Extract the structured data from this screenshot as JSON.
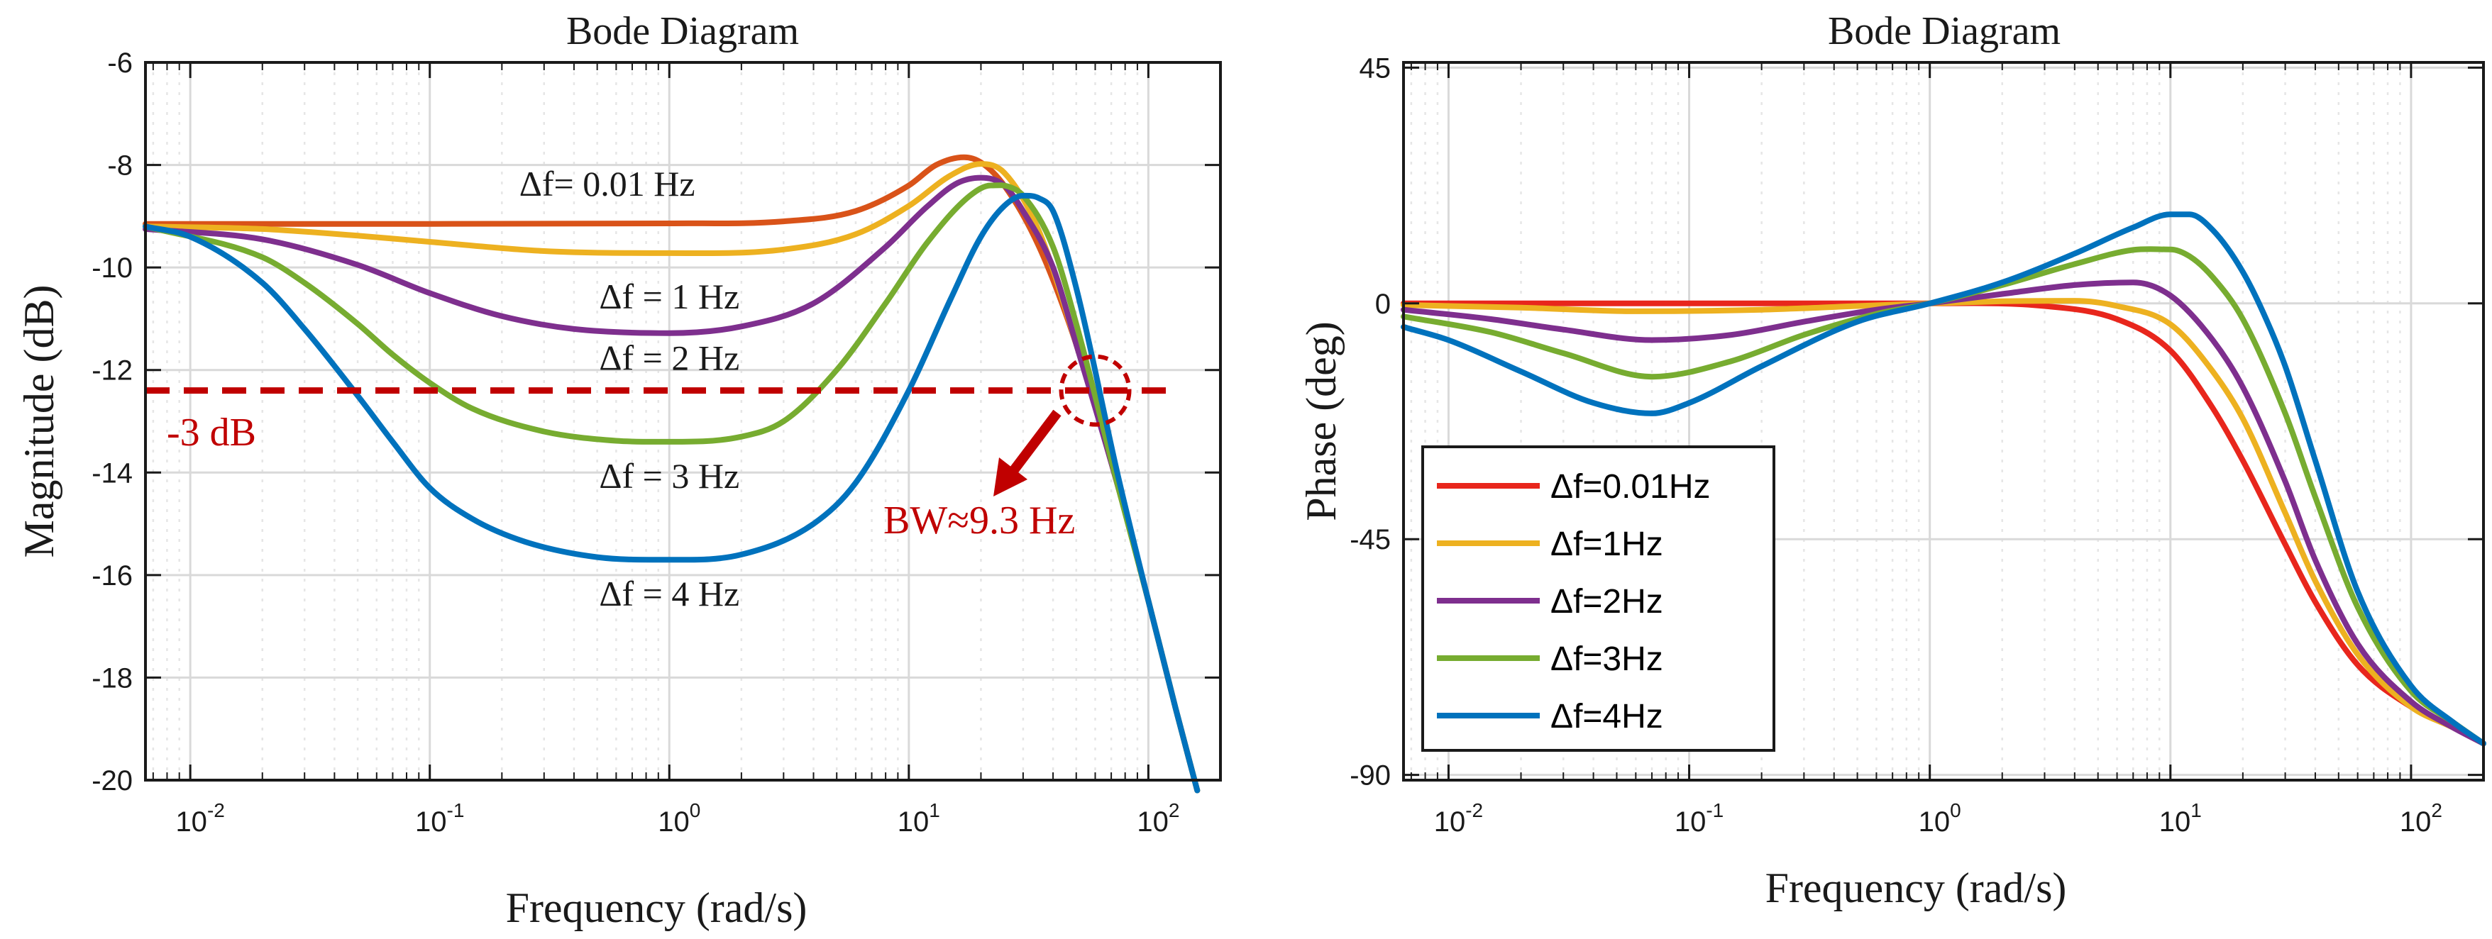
{
  "colors": {
    "series": [
      "#e8261c",
      "#edb120",
      "#7e2f8e",
      "#77ac30",
      "#0072bd"
    ],
    "series_left_top": "#d95319",
    "annotation": "#c00000",
    "grid_major": "#d9d9d9",
    "grid_minor": "#e6e6e6"
  },
  "chart_data": [
    {
      "type": "line",
      "title": "Bode Diagram",
      "xlabel": "Frequency (rad/s)",
      "ylabel": "Magnitude (dB)",
      "xscale": "log",
      "xlim": [
        0.0065,
        200
      ],
      "ylim": [
        -20,
        -6
      ],
      "x_ticks": [
        {
          "base": "10",
          "exp": "-2"
        },
        {
          "base": "10",
          "exp": "-1"
        },
        {
          "base": "10",
          "exp": "0"
        },
        {
          "base": "10",
          "exp": "1"
        },
        {
          "base": "10",
          "exp": "2"
        }
      ],
      "y_ticks": [
        "-6",
        "-8",
        "-10",
        "-12",
        "-14",
        "-16",
        "-18",
        "-20"
      ],
      "y_tick_values": [
        -6,
        -8,
        -10,
        -12,
        -14,
        -16,
        -18,
        -20
      ],
      "series": [
        {
          "name": "Δf = 0.01 Hz",
          "label_text": "Δf= 0.01 Hz",
          "label_at": [
            0.55,
            -8.6
          ],
          "x": [
            0.0065,
            0.1,
            1,
            3,
            6,
            10,
            13,
            17,
            20,
            25,
            35,
            50,
            75,
            100,
            130,
            160
          ],
          "y": [
            -9.15,
            -9.15,
            -9.14,
            -9.1,
            -8.9,
            -8.4,
            -8.0,
            -7.85,
            -7.95,
            -8.4,
            -9.6,
            -11.5,
            -14.3,
            -16.5,
            -18.6,
            -20.2
          ]
        },
        {
          "name": "Δf = 1 Hz",
          "label_text": "Δf = 1 Hz",
          "label_at": [
            1,
            -10.8
          ],
          "x": [
            0.0065,
            0.02,
            0.05,
            0.1,
            0.3,
            1,
            3,
            6,
            10,
            15,
            20,
            25,
            35,
            50,
            75,
            100,
            130,
            160
          ],
          "y": [
            -9.2,
            -9.25,
            -9.38,
            -9.5,
            -9.68,
            -9.72,
            -9.65,
            -9.35,
            -8.8,
            -8.2,
            -7.98,
            -8.15,
            -9.3,
            -11.5,
            -14.3,
            -16.5,
            -18.6,
            -20.2
          ]
        },
        {
          "name": "Δf = 2 Hz",
          "label_text": "Δf = 2 Hz",
          "label_at": [
            1,
            -12.0
          ],
          "x": [
            0.0065,
            0.02,
            0.05,
            0.1,
            0.2,
            0.4,
            1,
            2,
            4,
            8,
            12,
            16,
            20,
            25,
            30,
            40,
            50,
            75,
            100,
            130,
            160
          ],
          "y": [
            -9.25,
            -9.45,
            -9.95,
            -10.5,
            -10.95,
            -11.2,
            -11.28,
            -11.15,
            -10.7,
            -9.6,
            -8.8,
            -8.35,
            -8.25,
            -8.4,
            -8.9,
            -10.0,
            -11.5,
            -14.3,
            -16.5,
            -18.6,
            -20.2
          ]
        },
        {
          "name": "Δf = 3 Hz",
          "label_text": "Δf = 3 Hz",
          "label_at": [
            1,
            -14.3
          ],
          "x": [
            0.0065,
            0.02,
            0.03,
            0.05,
            0.07,
            0.1,
            0.15,
            0.3,
            0.6,
            1,
            2,
            3,
            5,
            8,
            12,
            18,
            22,
            26,
            30,
            40,
            50,
            75,
            100,
            130,
            160
          ],
          "y": [
            -9.2,
            -9.8,
            -10.3,
            -11.1,
            -11.7,
            -12.25,
            -12.75,
            -13.2,
            -13.38,
            -13.4,
            -13.3,
            -13.0,
            -12.0,
            -10.7,
            -9.5,
            -8.6,
            -8.4,
            -8.42,
            -8.6,
            -9.6,
            -11.1,
            -14.3,
            -16.5,
            -18.6,
            -20.2
          ]
        },
        {
          "name": "Δf = 4 Hz",
          "label_text": "Δf = 4 Hz",
          "label_at": [
            1,
            -16.6
          ],
          "x": [
            0.0065,
            0.01,
            0.02,
            0.03,
            0.05,
            0.07,
            0.1,
            0.15,
            0.25,
            0.5,
            1,
            2,
            4,
            6,
            10,
            15,
            20,
            25,
            30,
            35,
            40,
            50,
            75,
            100,
            130,
            160
          ],
          "y": [
            -9.2,
            -9.4,
            -10.3,
            -11.2,
            -12.5,
            -13.4,
            -14.3,
            -14.9,
            -15.35,
            -15.65,
            -15.7,
            -15.6,
            -15.0,
            -14.2,
            -12.4,
            -10.6,
            -9.4,
            -8.8,
            -8.6,
            -8.65,
            -8.9,
            -10.4,
            -14.1,
            -16.5,
            -18.6,
            -20.2
          ]
        }
      ],
      "threshold": {
        "value": -12.4,
        "label": "-3 dB"
      },
      "marker": {
        "x": 60,
        "y": -12.4
      },
      "bw_label": "BW≈9.3 Hz"
    },
    {
      "type": "line",
      "title": "Bode Diagram",
      "xlabel": "Frequency (rad/s)",
      "ylabel": "Phase (deg)",
      "xscale": "log",
      "xlim": [
        0.0065,
        200
      ],
      "ylim": [
        -91,
        46
      ],
      "x_ticks": [
        {
          "base": "10",
          "exp": "-2"
        },
        {
          "base": "10",
          "exp": "-1"
        },
        {
          "base": "10",
          "exp": "0"
        },
        {
          "base": "10",
          "exp": "1"
        },
        {
          "base": "10",
          "exp": "2"
        }
      ],
      "y_ticks": [
        "45",
        "0",
        "-45",
        "-90"
      ],
      "y_tick_values": [
        45,
        0,
        -45,
        -90
      ],
      "legend_position": "lower-left",
      "series": [
        {
          "name": "Δf=0.01Hz",
          "x": [
            0.0065,
            0.1,
            1,
            3,
            6,
            10,
            15,
            20,
            30,
            40,
            60,
            100,
            150,
            200
          ],
          "y": [
            0,
            0,
            0,
            -0.5,
            -3,
            -9,
            -20,
            -30,
            -46,
            -57,
            -69,
            -77,
            -81,
            -84
          ]
        },
        {
          "name": "Δf=1Hz",
          "x": [
            0.0065,
            0.02,
            0.06,
            0.2,
            0.5,
            1,
            2,
            4,
            6,
            10,
            15,
            20,
            30,
            40,
            60,
            100,
            150,
            200
          ],
          "y": [
            -0.3,
            -0.8,
            -1.5,
            -1.2,
            -0.5,
            0,
            0.4,
            0.5,
            -0.5,
            -4,
            -13,
            -22,
            -40,
            -53,
            -67,
            -77,
            -81,
            -84
          ]
        },
        {
          "name": "Δf=2Hz",
          "x": [
            0.0065,
            0.015,
            0.03,
            0.07,
            0.15,
            0.3,
            0.6,
            1,
            2,
            4,
            7,
            10,
            15,
            20,
            30,
            40,
            60,
            100,
            150,
            200
          ],
          "y": [
            -1.2,
            -3,
            -5,
            -7,
            -6,
            -3.5,
            -1.2,
            0,
            1.8,
            3.5,
            4,
            1.5,
            -7,
            -16,
            -34,
            -49,
            -65,
            -76,
            -81,
            -84
          ]
        },
        {
          "name": "Δf=3Hz",
          "x": [
            0.0065,
            0.015,
            0.03,
            0.07,
            0.15,
            0.3,
            0.6,
            1,
            2,
            4,
            7,
            10,
            12,
            15,
            20,
            30,
            40,
            60,
            100,
            150,
            200
          ],
          "y": [
            -2.5,
            -5.5,
            -9.5,
            -14,
            -11,
            -6,
            -2,
            0,
            3.5,
            7.5,
            10.2,
            10.3,
            9,
            5,
            -3,
            -21,
            -37,
            -58,
            -74,
            -80,
            -84
          ]
        },
        {
          "name": "Δf=4Hz",
          "x": [
            0.0065,
            0.01,
            0.02,
            0.04,
            0.07,
            0.1,
            0.2,
            0.5,
            1,
            2,
            4,
            7,
            10,
            12,
            15,
            20,
            25,
            30,
            40,
            60,
            100,
            150,
            200
          ],
          "y": [
            -4.5,
            -7,
            -13,
            -19,
            -21,
            -19,
            -12,
            -3.5,
            0,
            4,
            9.5,
            14.5,
            17,
            17,
            14,
            6,
            -3,
            -12,
            -30,
            -55,
            -73,
            -80,
            -84
          ]
        }
      ]
    }
  ]
}
